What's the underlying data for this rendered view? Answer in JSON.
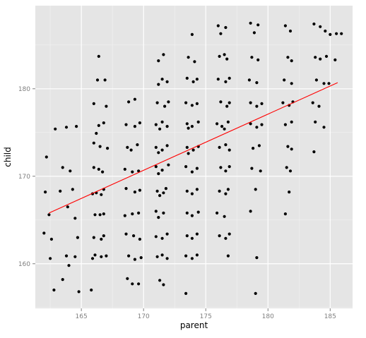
{
  "chart_data": {
    "type": "scatter",
    "title": "",
    "xlabel": "parent",
    "ylabel": "child",
    "xlim": [
      161.3,
      186.8
    ],
    "ylim": [
      154.9,
      189.5
    ],
    "xticks": [
      165,
      170,
      175,
      180,
      185
    ],
    "yticks": [
      160,
      170,
      180
    ],
    "xtick_labels": [
      "165",
      "170",
      "175",
      "180",
      "185"
    ],
    "ytick_labels": [
      "160",
      "170",
      "180"
    ],
    "grid": true,
    "legend": "none",
    "jitter": true,
    "trend_line": {
      "x": [
        162.4,
        185.6
      ],
      "y": [
        165.8,
        180.7
      ],
      "color": "#ff0000"
    },
    "colors": {
      "panel": "#e5e5e5",
      "grid_major": "#ffffff",
      "grid_minor": "#f2f2f2",
      "points": "#000000"
    },
    "points": [
      [
        162.9,
        175.4
      ],
      [
        163.8,
        175.6
      ],
      [
        164.6,
        175.7
      ],
      [
        162.2,
        172.2
      ],
      [
        163.5,
        171.0
      ],
      [
        164.1,
        170.6
      ],
      [
        162.1,
        168.2
      ],
      [
        163.3,
        168.3
      ],
      [
        164.3,
        168.5
      ],
      [
        163.9,
        166.5
      ],
      [
        162.4,
        165.6
      ],
      [
        164.5,
        165.2
      ],
      [
        162.0,
        163.5
      ],
      [
        162.6,
        162.8
      ],
      [
        164.7,
        163.0
      ],
      [
        162.5,
        160.6
      ],
      [
        163.8,
        160.9
      ],
      [
        164.5,
        160.8
      ],
      [
        164.0,
        159.8
      ],
      [
        163.5,
        158.2
      ],
      [
        162.8,
        157.0
      ],
      [
        164.8,
        156.8
      ],
      [
        166.4,
        183.7
      ],
      [
        166.3,
        181.0
      ],
      [
        166.9,
        181.0
      ],
      [
        166.0,
        178.3
      ],
      [
        167.0,
        178.0
      ],
      [
        166.4,
        175.8
      ],
      [
        166.8,
        176.1
      ],
      [
        166.2,
        174.9
      ],
      [
        166.5,
        173.4
      ],
      [
        167.1,
        173.2
      ],
      [
        166.0,
        173.8
      ],
      [
        166.0,
        171.0
      ],
      [
        166.7,
        170.5
      ],
      [
        166.4,
        170.8
      ],
      [
        166.2,
        168.1
      ],
      [
        166.8,
        168.5
      ],
      [
        165.9,
        168.0
      ],
      [
        166.6,
        167.9
      ],
      [
        166.1,
        165.6
      ],
      [
        166.8,
        165.7
      ],
      [
        166.5,
        165.6
      ],
      [
        166.0,
        163.0
      ],
      [
        166.8,
        163.2
      ],
      [
        166.6,
        162.8
      ],
      [
        166.1,
        161.0
      ],
      [
        166.6,
        160.8
      ],
      [
        165.9,
        160.6
      ],
      [
        167.0,
        160.9
      ],
      [
        165.8,
        157.0
      ],
      [
        168.8,
        178.5
      ],
      [
        169.3,
        178.8
      ],
      [
        168.6,
        175.9
      ],
      [
        169.3,
        175.7
      ],
      [
        169.7,
        176.1
      ],
      [
        168.7,
        173.3
      ],
      [
        169.0,
        173.0
      ],
      [
        169.5,
        173.6
      ],
      [
        168.5,
        170.8
      ],
      [
        169.1,
        170.5
      ],
      [
        169.6,
        170.6
      ],
      [
        168.6,
        168.6
      ],
      [
        169.3,
        168.2
      ],
      [
        169.7,
        168.4
      ],
      [
        168.5,
        165.5
      ],
      [
        169.1,
        165.7
      ],
      [
        169.6,
        165.8
      ],
      [
        168.6,
        163.4
      ],
      [
        169.2,
        163.2
      ],
      [
        169.7,
        162.8
      ],
      [
        168.8,
        160.9
      ],
      [
        169.3,
        160.5
      ],
      [
        169.8,
        160.7
      ],
      [
        168.7,
        158.3
      ],
      [
        169.1,
        157.7
      ],
      [
        169.6,
        157.7
      ],
      [
        171.6,
        183.9
      ],
      [
        171.2,
        183.2
      ],
      [
        171.5,
        181.1
      ],
      [
        171.2,
        180.5
      ],
      [
        171.9,
        180.8
      ],
      [
        171.1,
        178.4
      ],
      [
        171.7,
        178.0
      ],
      [
        172.0,
        178.5
      ],
      [
        171.0,
        175.9
      ],
      [
        171.5,
        176.2
      ],
      [
        171.9,
        175.7
      ],
      [
        171.3,
        175.4
      ],
      [
        171.0,
        173.3
      ],
      [
        171.5,
        173.0
      ],
      [
        171.9,
        173.5
      ],
      [
        171.2,
        172.7
      ],
      [
        171.0,
        171.1
      ],
      [
        171.5,
        170.7
      ],
      [
        172.0,
        171.3
      ],
      [
        171.2,
        170.3
      ],
      [
        171.1,
        168.3
      ],
      [
        171.6,
        168.1
      ],
      [
        171.8,
        168.6
      ],
      [
        171.3,
        167.8
      ],
      [
        171.0,
        166.0
      ],
      [
        171.6,
        165.8
      ],
      [
        171.2,
        165.3
      ],
      [
        171.0,
        163.1
      ],
      [
        171.5,
        162.9
      ],
      [
        171.9,
        163.4
      ],
      [
        171.1,
        160.8
      ],
      [
        171.5,
        161.0
      ],
      [
        171.9,
        160.6
      ],
      [
        171.3,
        158.1
      ],
      [
        171.6,
        157.6
      ],
      [
        173.9,
        186.2
      ],
      [
        173.6,
        183.6
      ],
      [
        174.1,
        183.1
      ],
      [
        173.5,
        181.2
      ],
      [
        174.0,
        180.8
      ],
      [
        174.3,
        181.1
      ],
      [
        173.4,
        178.4
      ],
      [
        173.9,
        178.1
      ],
      [
        174.3,
        178.3
      ],
      [
        173.5,
        176.0
      ],
      [
        173.9,
        175.7
      ],
      [
        174.4,
        176.2
      ],
      [
        173.6,
        175.5
      ],
      [
        173.5,
        173.3
      ],
      [
        174.0,
        173.0
      ],
      [
        174.4,
        173.4
      ],
      [
        173.6,
        172.6
      ],
      [
        173.4,
        171.1
      ],
      [
        173.9,
        170.5
      ],
      [
        174.3,
        170.9
      ],
      [
        173.5,
        168.3
      ],
      [
        173.9,
        168.0
      ],
      [
        174.3,
        168.5
      ],
      [
        173.5,
        165.8
      ],
      [
        173.9,
        165.5
      ],
      [
        174.4,
        165.9
      ],
      [
        173.5,
        163.2
      ],
      [
        173.9,
        162.9
      ],
      [
        174.3,
        163.4
      ],
      [
        173.4,
        160.9
      ],
      [
        173.9,
        160.6
      ],
      [
        174.3,
        161.0
      ],
      [
        173.4,
        156.6
      ],
      [
        176.0,
        187.2
      ],
      [
        176.6,
        187.0
      ],
      [
        176.2,
        186.3
      ],
      [
        176.1,
        183.7
      ],
      [
        176.7,
        183.4
      ],
      [
        176.5,
        183.9
      ],
      [
        176.0,
        181.1
      ],
      [
        176.6,
        180.8
      ],
      [
        176.9,
        181.2
      ],
      [
        176.2,
        178.5
      ],
      [
        176.7,
        178.0
      ],
      [
        176.9,
        178.4
      ],
      [
        175.9,
        176.0
      ],
      [
        176.3,
        175.7
      ],
      [
        176.8,
        176.2
      ],
      [
        176.5,
        175.4
      ],
      [
        176.1,
        173.3
      ],
      [
        176.6,
        173.6
      ],
      [
        176.9,
        173.0
      ],
      [
        176.2,
        171.0
      ],
      [
        176.6,
        170.6
      ],
      [
        176.9,
        171.1
      ],
      [
        176.1,
        168.3
      ],
      [
        176.6,
        168.0
      ],
      [
        176.8,
        168.5
      ],
      [
        175.9,
        165.8
      ],
      [
        176.5,
        165.4
      ],
      [
        176.1,
        163.2
      ],
      [
        176.6,
        162.9
      ],
      [
        176.9,
        163.4
      ],
      [
        176.8,
        160.9
      ],
      [
        178.6,
        187.5
      ],
      [
        179.2,
        187.3
      ],
      [
        178.9,
        186.4
      ],
      [
        178.7,
        183.6
      ],
      [
        179.2,
        183.3
      ],
      [
        178.5,
        181.0
      ],
      [
        179.1,
        180.7
      ],
      [
        178.6,
        178.4
      ],
      [
        179.1,
        178.0
      ],
      [
        179.5,
        178.3
      ],
      [
        178.6,
        176.0
      ],
      [
        179.1,
        175.6
      ],
      [
        179.5,
        175.9
      ],
      [
        178.8,
        173.2
      ],
      [
        179.3,
        173.5
      ],
      [
        178.7,
        170.9
      ],
      [
        179.4,
        170.6
      ],
      [
        179.0,
        168.5
      ],
      [
        178.6,
        166.0
      ],
      [
        179.1,
        160.7
      ],
      [
        179.0,
        156.6
      ],
      [
        181.4,
        187.2
      ],
      [
        181.8,
        186.6
      ],
      [
        181.6,
        183.6
      ],
      [
        181.9,
        183.2
      ],
      [
        181.3,
        181.0
      ],
      [
        181.9,
        180.6
      ],
      [
        181.2,
        178.4
      ],
      [
        181.7,
        178.1
      ],
      [
        182.0,
        178.5
      ],
      [
        181.4,
        175.9
      ],
      [
        181.9,
        176.2
      ],
      [
        181.6,
        173.4
      ],
      [
        181.9,
        173.1
      ],
      [
        181.5,
        171.0
      ],
      [
        181.8,
        170.6
      ],
      [
        181.7,
        168.2
      ],
      [
        181.4,
        165.7
      ],
      [
        183.7,
        187.4
      ],
      [
        184.2,
        187.1
      ],
      [
        184.6,
        186.6
      ],
      [
        183.8,
        183.6
      ],
      [
        184.2,
        183.4
      ],
      [
        184.7,
        183.7
      ],
      [
        183.9,
        181.0
      ],
      [
        184.5,
        180.6
      ],
      [
        183.6,
        178.4
      ],
      [
        184.1,
        178.0
      ],
      [
        183.8,
        176.2
      ],
      [
        184.5,
        175.6
      ],
      [
        183.7,
        172.8
      ],
      [
        185.0,
        186.2
      ],
      [
        185.5,
        186.3
      ],
      [
        185.9,
        186.3
      ],
      [
        185.4,
        183.3
      ],
      [
        184.9,
        180.6
      ]
    ]
  }
}
